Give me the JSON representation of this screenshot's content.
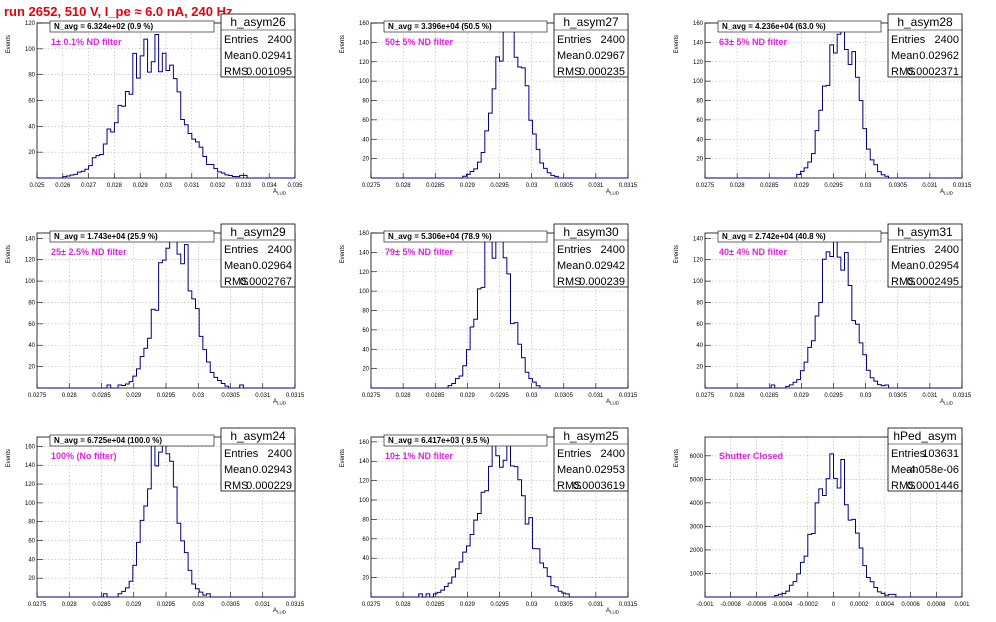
{
  "page_title": "run 2652,   510 V, I_pe ≈ 6.0 nA, 240 Hz",
  "colors": {
    "title": "#e8000b",
    "hist_line": "#000080",
    "note": "#e020e0",
    "grid": "#b0b0b0"
  },
  "chart_data": [
    {
      "type": "histogram",
      "name": "h_asym26",
      "ylabel": "Events",
      "xlabel": "A_{LUD}",
      "navg": "N_avg = 6.324e+02 (0.9 %)",
      "note": "1± 0.1% ND filter",
      "xlim": [
        0.025,
        0.035
      ],
      "ylim": [
        0,
        120
      ],
      "xticks": [
        0.025,
        0.026,
        0.027,
        0.028,
        0.029,
        0.03,
        0.031,
        0.032,
        0.033,
        0.034,
        0.035
      ],
      "xtick_labels": [
        "0.025",
        "0.026",
        "0.027",
        "0.028",
        "0.029",
        "0.03",
        "0.031",
        "0.032",
        "0.033",
        "0.034",
        "0.035"
      ],
      "yticks": [
        0,
        20,
        40,
        60,
        80,
        100,
        120
      ],
      "ytick_labels": [
        "",
        "20",
        "40",
        "60",
        "80",
        "100",
        "120"
      ],
      "stats": [
        [
          "Entries",
          "2400"
        ],
        [
          "Mean",
          "0.02941"
        ],
        [
          "RMS",
          "0.001095"
        ]
      ],
      "mean": 0.02941,
      "sigma": 0.001095,
      "peak": 100
    },
    {
      "type": "histogram",
      "name": "h_asym27",
      "ylabel": "Events",
      "xlabel": "A_{LUD}",
      "navg": "N_avg = 3.396e+04 (50.5 %)",
      "note": "50± 5% ND filter",
      "xlim": [
        0.0275,
        0.0315
      ],
      "ylim": [
        0,
        160
      ],
      "xticks": [
        0.0275,
        0.028,
        0.0285,
        0.029,
        0.0295,
        0.03,
        0.0305,
        0.031,
        0.0315
      ],
      "xtick_labels": [
        "0.0275",
        "0.028",
        "0.0285",
        "0.029",
        "0.0295",
        "0.03",
        "0.0305",
        "0.031",
        "0.0315"
      ],
      "yticks": [
        0,
        20,
        40,
        60,
        80,
        100,
        120,
        140,
        160
      ],
      "ytick_labels": [
        "",
        "20",
        "40",
        "60",
        "80",
        "100",
        "120",
        "140",
        "160"
      ],
      "stats": [
        [
          "Entries",
          "2400"
        ],
        [
          "Mean",
          "0.02967"
        ],
        [
          "RMS",
          "0.000235"
        ]
      ],
      "mean": 0.02967,
      "sigma": 0.000235,
      "peak": 160
    },
    {
      "type": "histogram",
      "name": "h_asym28",
      "ylabel": "Events",
      "xlabel": "A_{LUD}",
      "navg": "N_avg = 4.236e+04 (63.0 %)",
      "note": "63± 5% ND filter",
      "xlim": [
        0.0275,
        0.0315
      ],
      "ylim": [
        0,
        160
      ],
      "xticks": [
        0.0275,
        0.028,
        0.0285,
        0.029,
        0.0295,
        0.03,
        0.0305,
        0.031,
        0.0315
      ],
      "xtick_labels": [
        "0.0275",
        "0.028",
        "0.0285",
        "0.029",
        "0.0295",
        "0.03",
        "0.0305",
        "0.031",
        "0.0315"
      ],
      "yticks": [
        0,
        20,
        40,
        60,
        80,
        100,
        120,
        140,
        160
      ],
      "ytick_labels": [
        "",
        "20",
        "40",
        "60",
        "80",
        "100",
        "120",
        "140",
        "160"
      ],
      "stats": [
        [
          "Entries",
          "2400"
        ],
        [
          "Mean",
          "0.02962"
        ],
        [
          "RMS",
          "0.0002371"
        ]
      ],
      "mean": 0.02962,
      "sigma": 0.0002371,
      "peak": 160
    },
    {
      "type": "histogram",
      "name": "h_asym29",
      "ylabel": "Events",
      "xlabel": "A_{LUD}",
      "navg": "N_avg = 1.743e+04 (25.9 %)",
      "note": "25± 2.5% ND filter",
      "xlim": [
        0.0275,
        0.0315
      ],
      "ylim": [
        0,
        145
      ],
      "xticks": [
        0.0275,
        0.028,
        0.0285,
        0.029,
        0.0295,
        0.03,
        0.0305,
        0.031,
        0.0315
      ],
      "xtick_labels": [
        "0.0275",
        "0.028",
        "0.0285",
        "0.029",
        "0.0295",
        "0.03",
        "0.0305",
        "0.031",
        "0.0315"
      ],
      "yticks": [
        0,
        20,
        40,
        60,
        80,
        100,
        120,
        140
      ],
      "ytick_labels": [
        "",
        "20",
        "40",
        "60",
        "80",
        "100",
        "120",
        "140"
      ],
      "stats": [
        [
          "Entries",
          "2400"
        ],
        [
          "Mean",
          "0.02964"
        ],
        [
          "RMS",
          "0.0002767"
        ]
      ],
      "mean": 0.02964,
      "sigma": 0.0002767,
      "peak": 140
    },
    {
      "type": "histogram",
      "name": "h_asym30",
      "ylabel": "Events",
      "xlabel": "A_{LUD}",
      "navg": "N_avg = 5.306e+04 (78.9 %)",
      "note": "79± 5% ND filter",
      "xlim": [
        0.0275,
        0.0315
      ],
      "ylim": [
        0,
        160
      ],
      "xticks": [
        0.0275,
        0.028,
        0.0285,
        0.029,
        0.0295,
        0.03,
        0.0305,
        0.031,
        0.0315
      ],
      "xtick_labels": [
        "0.0275",
        "0.028",
        "0.0285",
        "0.029",
        "0.0295",
        "0.03",
        "0.0305",
        "0.031",
        "0.0315"
      ],
      "yticks": [
        0,
        20,
        40,
        60,
        80,
        100,
        120,
        140,
        160
      ],
      "ytick_labels": [
        "",
        "20",
        "40",
        "60",
        "80",
        "100",
        "120",
        "140",
        "160"
      ],
      "stats": [
        [
          "Entries",
          "2400"
        ],
        [
          "Mean",
          "0.02942"
        ],
        [
          "RMS",
          "0.000239"
        ]
      ],
      "mean": 0.02942,
      "sigma": 0.000239,
      "peak": 160
    },
    {
      "type": "histogram",
      "name": "h_asym31",
      "ylabel": "Events",
      "xlabel": "A_{LUD}",
      "navg": "N_avg = 2.742e+04 (40.8 %)",
      "note": "40± 4% ND filter",
      "xlim": [
        0.0275,
        0.0315
      ],
      "ylim": [
        0,
        145
      ],
      "xticks": [
        0.0275,
        0.028,
        0.0285,
        0.029,
        0.0295,
        0.03,
        0.0305,
        0.031,
        0.0315
      ],
      "xtick_labels": [
        "0.0275",
        "0.028",
        "0.0285",
        "0.029",
        "0.0295",
        "0.03",
        "0.0305",
        "0.031",
        "0.0315"
      ],
      "yticks": [
        0,
        20,
        40,
        60,
        80,
        100,
        120,
        140
      ],
      "ytick_labels": [
        "",
        "20",
        "40",
        "60",
        "80",
        "100",
        "120",
        "140"
      ],
      "stats": [
        [
          "Entries",
          "2400"
        ],
        [
          "Mean",
          "0.02954"
        ],
        [
          "RMS",
          "0.0002495"
        ]
      ],
      "mean": 0.02954,
      "sigma": 0.0002495,
      "peak": 140
    },
    {
      "type": "histogram",
      "name": "h_asym24",
      "ylabel": "Events",
      "xlabel": "A_{LUD}",
      "navg": "N_avg = 6.725e+04 (100.0 %)",
      "note": "100% (No filter)",
      "xlim": [
        0.0275,
        0.0315
      ],
      "ylim": [
        0,
        170
      ],
      "xticks": [
        0.0275,
        0.028,
        0.0285,
        0.029,
        0.0295,
        0.03,
        0.0305,
        0.031,
        0.0315
      ],
      "xtick_labels": [
        "0.0275",
        "0.028",
        "0.0285",
        "0.029",
        "0.0295",
        "0.03",
        "0.0305",
        "0.031",
        "0.0315"
      ],
      "yticks": [
        0,
        20,
        40,
        60,
        80,
        100,
        120,
        140,
        160
      ],
      "ytick_labels": [
        "",
        "20",
        "40",
        "60",
        "80",
        "100",
        "120",
        "140",
        "160"
      ],
      "stats": [
        [
          "Entries",
          "2400"
        ],
        [
          "Mean",
          "0.02943"
        ],
        [
          "RMS",
          "0.000229"
        ]
      ],
      "mean": 0.02943,
      "sigma": 0.000229,
      "peak": 170
    },
    {
      "type": "histogram",
      "name": "h_asym25",
      "ylabel": "Events",
      "xlabel": "A_{LUD}",
      "navg": "N_avg = 6.417e+03 ( 9.5 %)",
      "note": "10± 1% ND filter",
      "xlim": [
        0.0275,
        0.0315
      ],
      "ylim": [
        0,
        165
      ],
      "xticks": [
        0.0275,
        0.028,
        0.0285,
        0.029,
        0.0295,
        0.03,
        0.0305,
        0.031,
        0.0315
      ],
      "xtick_labels": [
        "0.0275",
        "0.028",
        "0.0285",
        "0.029",
        "0.0295",
        "0.03",
        "0.0305",
        "0.031",
        "0.0315"
      ],
      "yticks": [
        0,
        20,
        40,
        60,
        80,
        100,
        120,
        140,
        160
      ],
      "ytick_labels": [
        "",
        "20",
        "40",
        "60",
        "80",
        "100",
        "120",
        "140",
        "160"
      ],
      "stats": [
        [
          "Entries",
          "2400"
        ],
        [
          "Mean",
          "0.02953"
        ],
        [
          "RMS",
          "0.0003619"
        ]
      ],
      "mean": 0.02953,
      "sigma": 0.0003619,
      "peak": 160
    },
    {
      "type": "histogram",
      "name": "hPed_asym",
      "ylabel": "Events",
      "xlabel": "",
      "navg": "",
      "note": "Shutter Closed",
      "xlim": [
        -0.001,
        0.001
      ],
      "ylim": [
        0,
        6800
      ],
      "xticks": [
        -0.001,
        -0.0008,
        -0.0006,
        -0.0004,
        -0.0002,
        0,
        0.0002,
        0.0004,
        0.0006,
        0.0008,
        0.001
      ],
      "xtick_labels": [
        "-0.001",
        "-0.0008",
        "-0.0006",
        "-0.0004",
        "-0.0002",
        "0",
        "0.0002",
        "0.0004",
        "0.0006",
        "0.0008",
        "0.001"
      ],
      "yticks": [
        0,
        1000,
        2000,
        3000,
        4000,
        5000,
        6000
      ],
      "ytick_labels": [
        "",
        "1000",
        "2000",
        "3000",
        "4000",
        "5000",
        "6000"
      ],
      "stats": [
        [
          "Entries",
          "103631"
        ],
        [
          "Mean",
          "-4.058e-06"
        ],
        [
          "RMS",
          "0.0001446"
        ]
      ],
      "mean": -4.058e-06,
      "sigma": 0.0001446,
      "peak": 5700
    }
  ]
}
